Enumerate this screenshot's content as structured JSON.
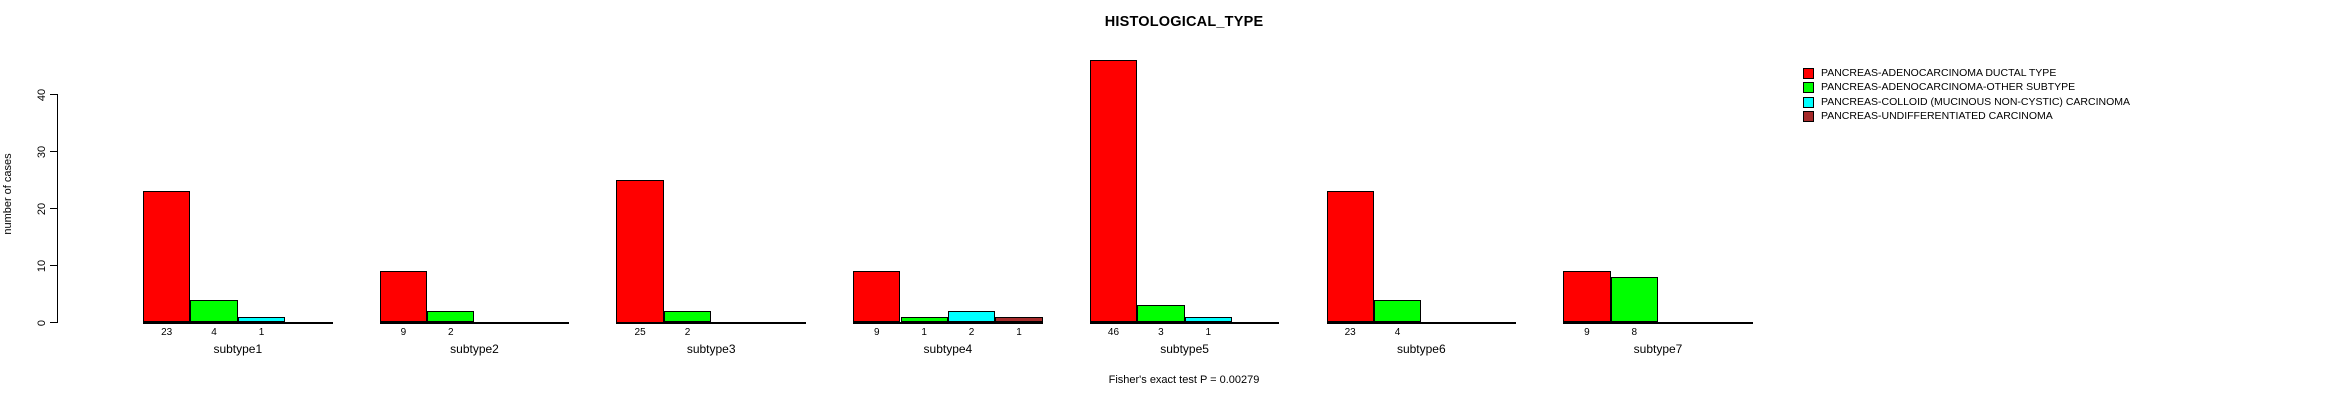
{
  "chart_data": {
    "type": "bar",
    "title": "HISTOLOGICAL_TYPE",
    "ylabel": "number of cases",
    "xlabel": "",
    "annotation": "Fisher's exact test P = 0.00279",
    "categories": [
      "subtype1",
      "subtype2",
      "subtype3",
      "subtype4",
      "subtype5",
      "subtype6",
      "subtype7"
    ],
    "yticks": [
      0,
      10,
      20,
      30,
      40
    ],
    "ylim": [
      0,
      46
    ],
    "grid": false,
    "legend_position": "right",
    "bar_border_color": "#000000",
    "series": [
      {
        "name": "PANCREAS-ADENOCARCINOMA DUCTAL TYPE",
        "color": "#FF0000",
        "values": [
          23,
          9,
          25,
          9,
          46,
          23,
          9
        ]
      },
      {
        "name": "PANCREAS-ADENOCARCINOMA-OTHER SUBTYPE",
        "color": "#00FF00",
        "values": [
          4,
          2,
          2,
          1,
          3,
          4,
          8
        ]
      },
      {
        "name": "PANCREAS-COLLOID (MUCINOUS NON-CYSTIC) CARCINOMA",
        "color": "#00FFFF",
        "values": [
          1,
          0,
          0,
          2,
          1,
          0,
          0
        ]
      },
      {
        "name": "PANCREAS-UNDIFFERENTIATED CARCINOMA",
        "color": "#A52A2A",
        "values": [
          0,
          0,
          0,
          1,
          0,
          0,
          0
        ]
      }
    ]
  }
}
